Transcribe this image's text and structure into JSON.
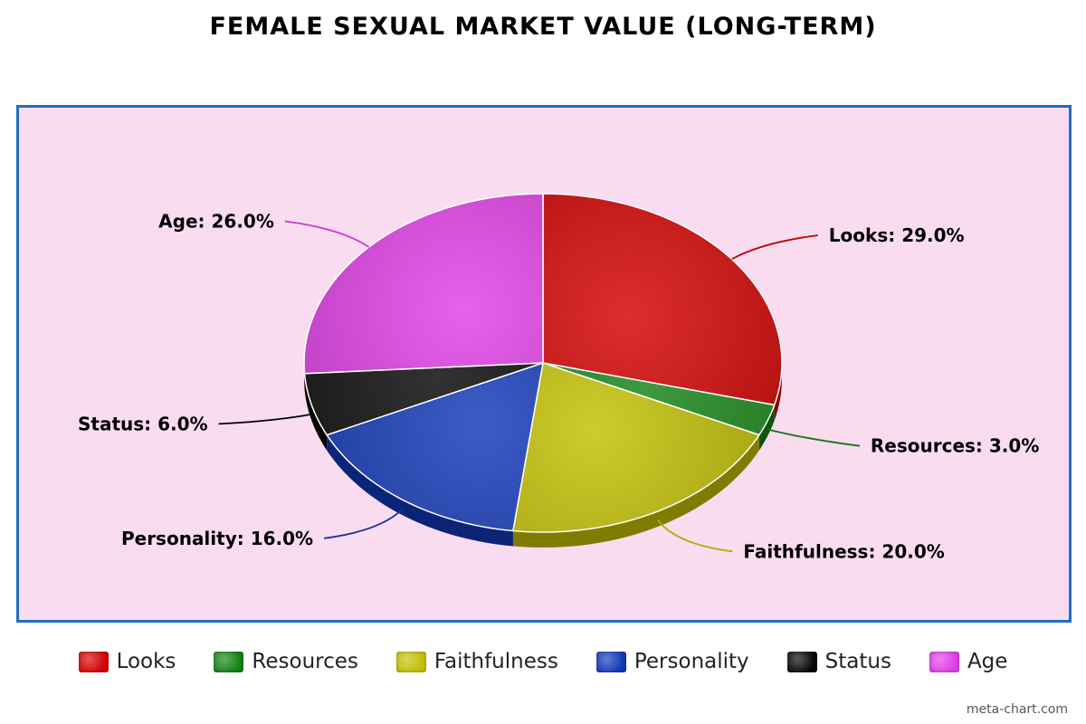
{
  "title": "FEMALE SEXUAL MARKET VALUE (LONG-TERM)",
  "credit": "meta-chart.com",
  "chart_data": {
    "type": "pie",
    "title": "FEMALE SEXUAL MARKET VALUE (LONG-TERM)",
    "categories": [
      "Looks",
      "Resources",
      "Faithfulness",
      "Personality",
      "Status",
      "Age"
    ],
    "values": [
      29.0,
      3.0,
      20.0,
      16.0,
      6.0,
      26.0
    ],
    "labels": [
      "Looks: 29.0%",
      "Resources: 3.0%",
      "Faithfulness: 20.0%",
      "Personality: 16.0%",
      "Status: 6.0%",
      "Age: 26.0%"
    ],
    "colors": [
      "#d40000",
      "#148214",
      "#c3c000",
      "#1238b8",
      "#050505",
      "#e23ee8"
    ],
    "legend_position": "bottom",
    "start_angle": "top, clockwise",
    "style": "3d"
  },
  "legend": [
    {
      "label": "Looks",
      "color": "#d40000"
    },
    {
      "label": "Resources",
      "color": "#148214"
    },
    {
      "label": "Faithfulness",
      "color": "#c3c000"
    },
    {
      "label": "Personality",
      "color": "#1238b8"
    },
    {
      "label": "Status",
      "color": "#050505"
    },
    {
      "label": "Age",
      "color": "#e23ee8"
    }
  ]
}
